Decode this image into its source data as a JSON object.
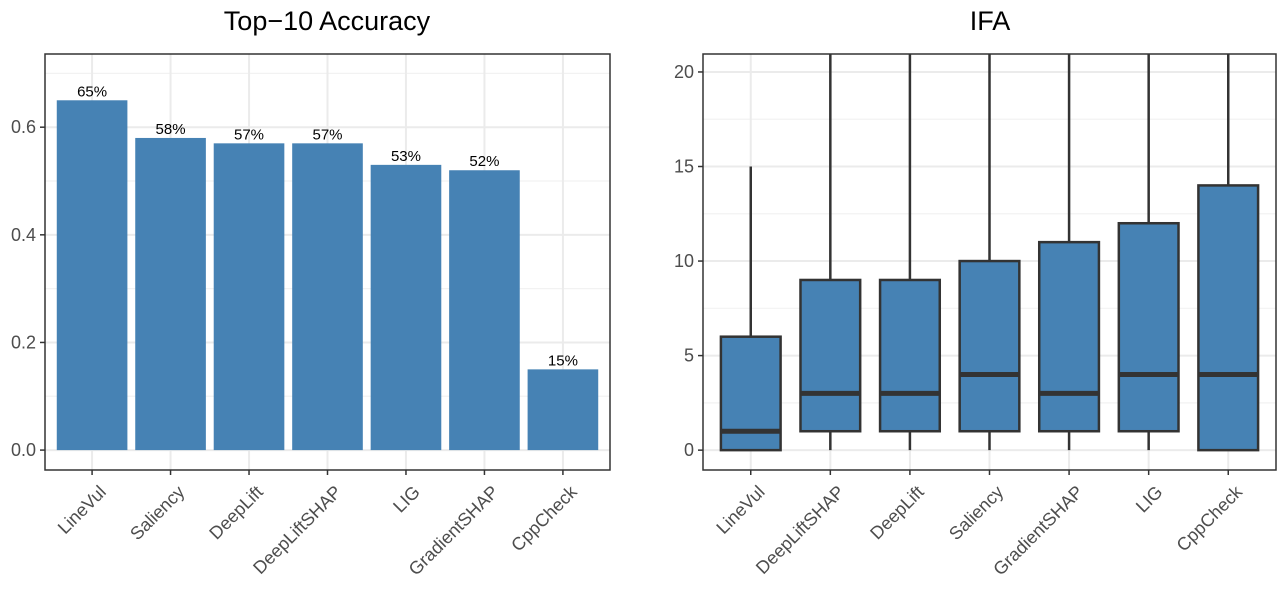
{
  "chart_data": [
    {
      "type": "bar",
      "title": "Top−10 Accuracy",
      "xlabel": "",
      "ylabel": "",
      "categories": [
        "LineVul",
        "Saliency",
        "DeepLift",
        "DeepLiftSHAP",
        "LIG",
        "GradientSHAP",
        "CppCheck"
      ],
      "values": [
        0.65,
        0.58,
        0.57,
        0.57,
        0.53,
        0.52,
        0.15
      ],
      "data_labels": [
        "65%",
        "58%",
        "57%",
        "57%",
        "53%",
        "52%",
        "15%"
      ],
      "ylim": [
        -0.037,
        0.736
      ],
      "yticks": [
        0.0,
        0.2,
        0.4,
        0.6
      ],
      "ytick_labels": [
        "0.0",
        "0.2",
        "0.4",
        "0.6"
      ],
      "grid": true,
      "color": "#4682B4"
    },
    {
      "type": "box",
      "title": "IFA",
      "xlabel": "",
      "ylabel": "",
      "categories": [
        "LineVul",
        "DeepLiftSHAP",
        "DeepLift",
        "Saliency",
        "GradientSHAP",
        "LIG",
        "CppCheck"
      ],
      "boxes": [
        {
          "whisker_low": 0,
          "q1": 0,
          "median": 1,
          "q3": 6,
          "whisker_high": 15
        },
        {
          "whisker_low": 0,
          "q1": 1,
          "median": 3,
          "q3": 9,
          "whisker_high": 21
        },
        {
          "whisker_low": 0,
          "q1": 1,
          "median": 3,
          "q3": 9,
          "whisker_high": 21
        },
        {
          "whisker_low": 0,
          "q1": 1,
          "median": 4,
          "q3": 10,
          "whisker_high": 21
        },
        {
          "whisker_low": 0,
          "q1": 1,
          "median": 3,
          "q3": 11,
          "whisker_high": 21
        },
        {
          "whisker_low": 0,
          "q1": 1,
          "median": 4,
          "q3": 12,
          "whisker_high": 21
        },
        {
          "whisker_low": 0,
          "q1": 0,
          "median": 4,
          "q3": 14,
          "whisker_high": 21
        }
      ],
      "ylim": [
        -1.05,
        20.95
      ],
      "yticks": [
        0,
        5,
        10,
        15,
        20
      ],
      "ytick_labels": [
        "0",
        "5",
        "10",
        "15",
        "20"
      ],
      "grid": true,
      "color": "#4682B4"
    }
  ]
}
